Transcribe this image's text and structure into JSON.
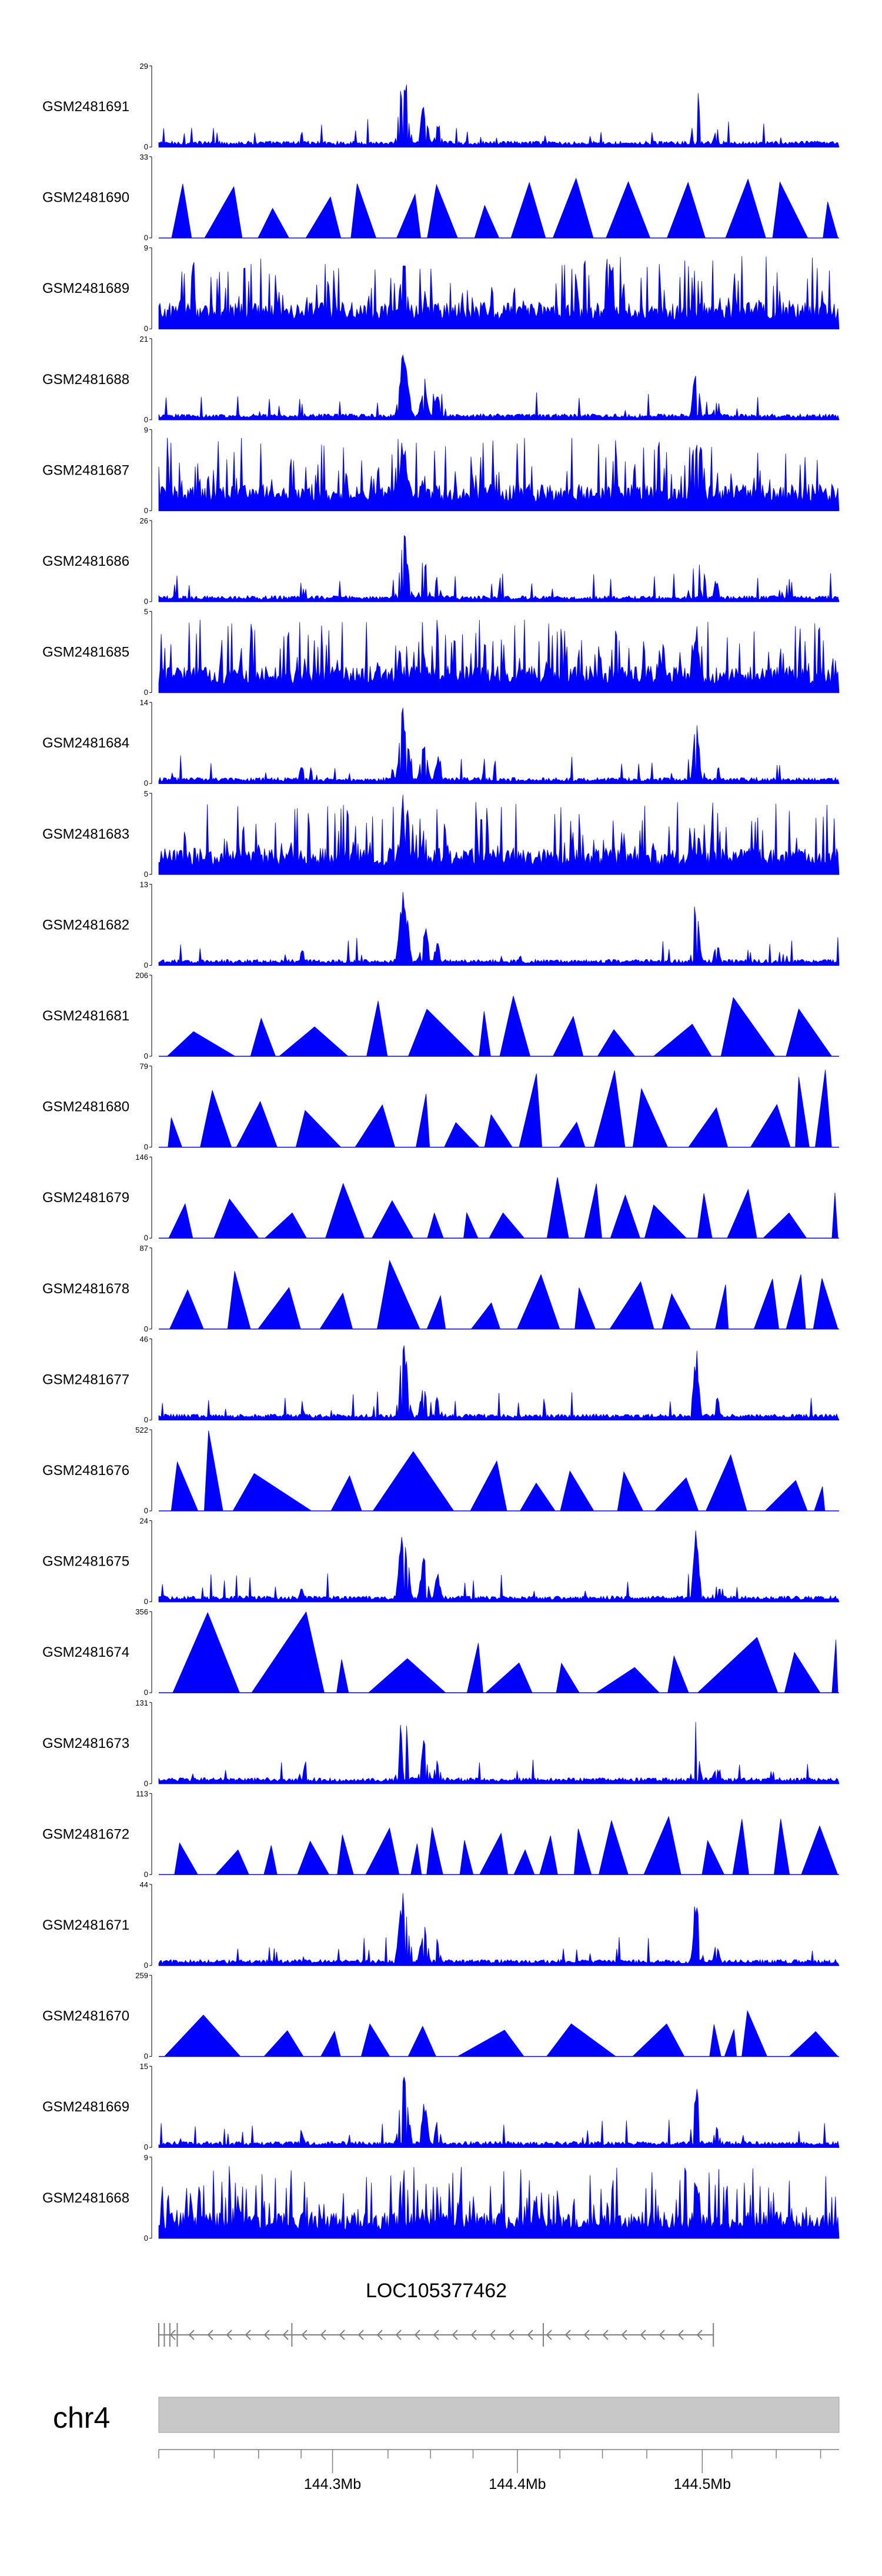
{
  "chart_data": {
    "type": "area",
    "colors": {
      "signal": "#0000ff",
      "axis": "#000000",
      "ideogram": "#c8c8c8",
      "gene": "#7f7f7f"
    },
    "region": {
      "start": 144.206,
      "end": 144.574,
      "unit": "Mb"
    },
    "tracks": [
      {
        "name": "GSM2481691",
        "ymax": 29,
        "ymin": 0,
        "style": "noisy"
      },
      {
        "name": "GSM2481690",
        "ymax": 33,
        "ymin": 0,
        "style": "triangles"
      },
      {
        "name": "GSM2481689",
        "ymax": 9,
        "ymin": 0,
        "style": "dense"
      },
      {
        "name": "GSM2481688",
        "ymax": 21,
        "ymin": 0,
        "style": "noisy"
      },
      {
        "name": "GSM2481687",
        "ymax": 9,
        "ymin": 0,
        "style": "dense"
      },
      {
        "name": "GSM2481686",
        "ymax": 26,
        "ymin": 0,
        "style": "noisy"
      },
      {
        "name": "GSM2481685",
        "ymax": 5,
        "ymin": 0,
        "style": "dense"
      },
      {
        "name": "GSM2481684",
        "ymax": 14,
        "ymin": 0,
        "style": "noisy"
      },
      {
        "name": "GSM2481683",
        "ymax": 5,
        "ymin": 0,
        "style": "dense"
      },
      {
        "name": "GSM2481682",
        "ymax": 13,
        "ymin": 0,
        "style": "noisy"
      },
      {
        "name": "GSM2481681",
        "ymax": 206,
        "ymin": 0,
        "style": "triangles"
      },
      {
        "name": "GSM2481680",
        "ymax": 79,
        "ymin": 0,
        "style": "triangles"
      },
      {
        "name": "GSM2481679",
        "ymax": 146,
        "ymin": 0,
        "style": "triangles"
      },
      {
        "name": "GSM2481678",
        "ymax": 87,
        "ymin": 0,
        "style": "triangles"
      },
      {
        "name": "GSM2481677",
        "ymax": 46,
        "ymin": 0,
        "style": "noisy"
      },
      {
        "name": "GSM2481676",
        "ymax": 522,
        "ymin": 0,
        "style": "triangles"
      },
      {
        "name": "GSM2481675",
        "ymax": 24,
        "ymin": 0,
        "style": "noisy"
      },
      {
        "name": "GSM2481674",
        "ymax": 356,
        "ymin": 0,
        "style": "triangles"
      },
      {
        "name": "GSM2481673",
        "ymax": 131,
        "ymin": 0,
        "style": "noisy"
      },
      {
        "name": "GSM2481672",
        "ymax": 113,
        "ymin": 0,
        "style": "triangles"
      },
      {
        "name": "GSM2481671",
        "ymax": 44,
        "ymin": 0,
        "style": "noisy"
      },
      {
        "name": "GSM2481670",
        "ymax": 259,
        "ymin": 0,
        "style": "triangles"
      },
      {
        "name": "GSM2481669",
        "ymax": 15,
        "ymin": 0,
        "style": "noisy"
      },
      {
        "name": "GSM2481668",
        "ymax": 9,
        "ymin": 0,
        "style": "dense"
      }
    ],
    "gene": {
      "name": "LOC105377462",
      "start": 144.206,
      "end": 144.506,
      "strand": "-",
      "exons": [
        144.206,
        144.209,
        144.212,
        144.216,
        144.278,
        144.414,
        144.506
      ]
    },
    "chromosome": "chr4",
    "axis_ticks": [
      {
        "value": 144.3,
        "label": "144.3Mb"
      },
      {
        "value": 144.4,
        "label": "144.4Mb"
      },
      {
        "value": 144.5,
        "label": "144.5Mb"
      }
    ],
    "minor_ticks": [
      144.206,
      144.236,
      144.26,
      144.283,
      144.33,
      144.353,
      144.376,
      144.423,
      144.446,
      144.47,
      144.516,
      144.54,
      144.564
    ],
    "legend": "none",
    "grid": false
  }
}
